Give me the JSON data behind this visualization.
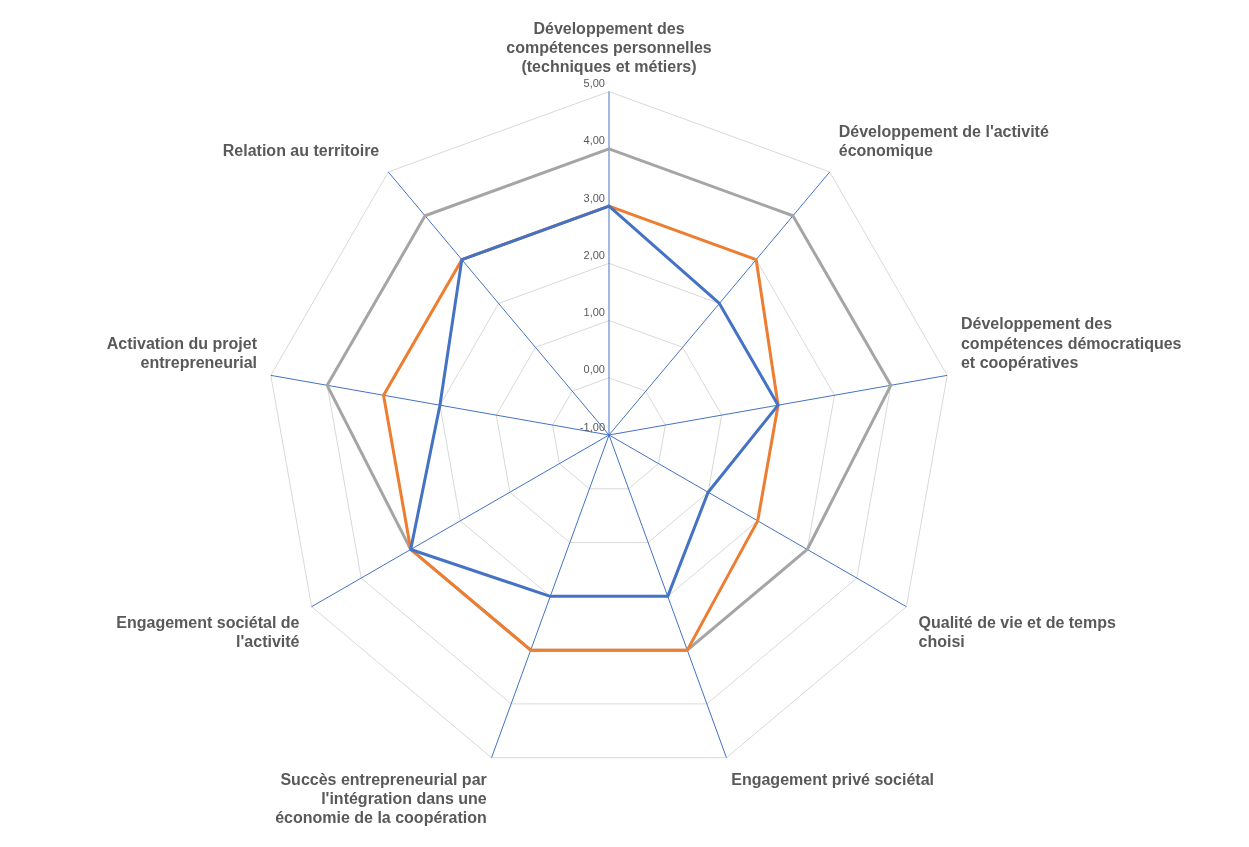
{
  "chart_data": {
    "type": "radar",
    "categories": [
      "Développement des compétences personnelles (techniques et métiers)",
      "Développement de l'activité économique",
      "Développement des compétences démocratiques et coopératives",
      "Qualité de vie et de temps choisi",
      "Engagement privé sociétal",
      "Succès entrepreneurial par l'intégration dans une économie de la coopération",
      "Engagement sociétal de l'activité",
      "Activation du projet entrepreneurial",
      "Relation au territoire"
    ],
    "series": [
      {
        "color": "#4472c4",
        "values": [
          3,
          2,
          2,
          1,
          2,
          2,
          3,
          2,
          3
        ]
      },
      {
        "color": "#ed7d31",
        "values": [
          3,
          3,
          2,
          2,
          3,
          3,
          3,
          3,
          3
        ]
      },
      {
        "color": "#a5a5a5",
        "values": [
          4,
          4,
          4,
          3,
          3,
          3,
          3,
          4,
          4
        ]
      }
    ],
    "ylim": [
      -1,
      5
    ],
    "yticks": [
      {
        "value": -1,
        "label": "-1,00"
      },
      {
        "value": 0,
        "label": "0,00"
      },
      {
        "value": 1,
        "label": "1,00"
      },
      {
        "value": 2,
        "label": "2,00"
      },
      {
        "value": 3,
        "label": "3,00"
      },
      {
        "value": 4,
        "label": "4,00"
      },
      {
        "value": 5,
        "label": "5,00"
      }
    ],
    "grid": true,
    "marker": "none"
  }
}
